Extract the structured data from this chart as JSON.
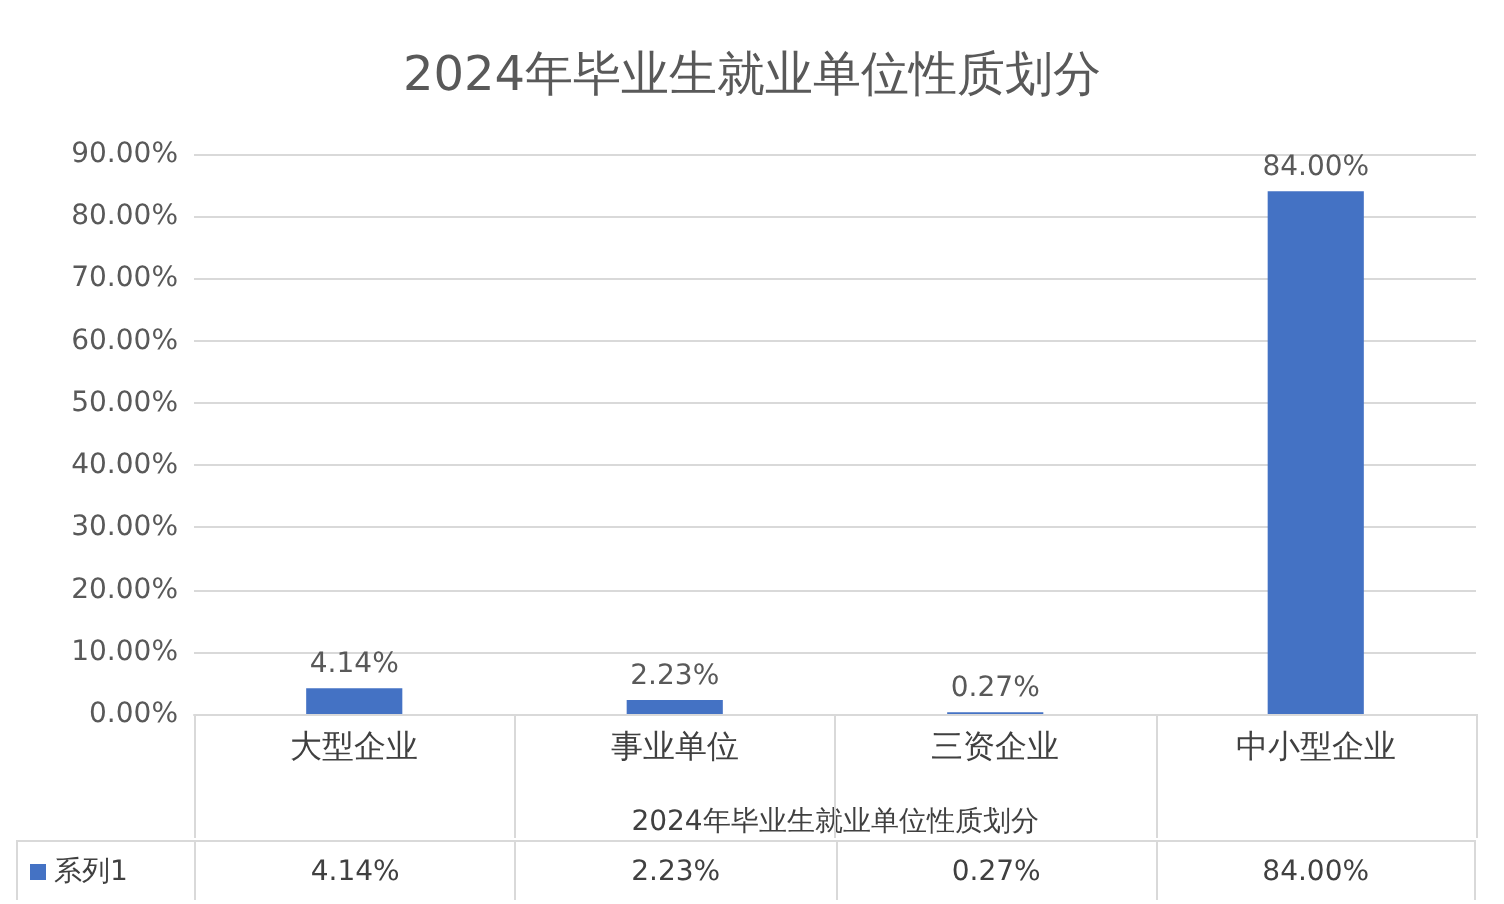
{
  "chart_data": {
    "type": "bar",
    "title": "2024年毕业生就业单位性质划分",
    "xlabel": "2024年毕业生就业单位性质划分",
    "categories": [
      "大型企业",
      "事业单位",
      "三资企业",
      "中小型企业"
    ],
    "series": [
      {
        "name": "系列1",
        "color": "#4472c4",
        "values": [
          4.14,
          2.23,
          0.27,
          84.0
        ],
        "value_labels": [
          "4.14%",
          "2.23%",
          "0.27%",
          "84.00%"
        ]
      }
    ],
    "ylim": [
      0,
      90
    ],
    "yticks": [
      {
        "value": 0,
        "label": "0.00%"
      },
      {
        "value": 10,
        "label": "10.00%"
      },
      {
        "value": 20,
        "label": "20.00%"
      },
      {
        "value": 30,
        "label": "30.00%"
      },
      {
        "value": 40,
        "label": "40.00%"
      },
      {
        "value": 50,
        "label": "50.00%"
      },
      {
        "value": 60,
        "label": "60.00%"
      },
      {
        "value": 70,
        "label": "70.00%"
      },
      {
        "value": 80,
        "label": "80.00%"
      },
      {
        "value": 90,
        "label": "90.00%"
      }
    ],
    "grid": "y",
    "legend": "bottom"
  }
}
